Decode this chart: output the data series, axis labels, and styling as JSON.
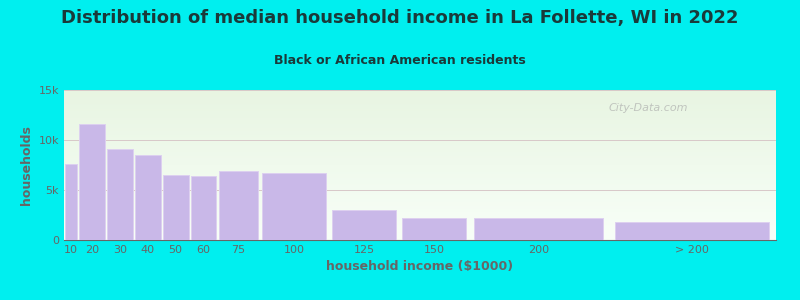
{
  "title": "Distribution of median household income in La Follette, WI in 2022",
  "subtitle": "Black or African American residents",
  "xlabel": "household income ($1000)",
  "ylabel": "households",
  "bar_labels": [
    "10",
    "20",
    "30",
    "40",
    "50",
    "60",
    "75",
    "100",
    "125",
    "150",
    "200",
    "> 200"
  ],
  "bar_left_edges": [
    5,
    10,
    20,
    30,
    40,
    50,
    60,
    75,
    100,
    125,
    150,
    200
  ],
  "bar_right_edges": [
    10,
    20,
    30,
    40,
    50,
    60,
    75,
    100,
    125,
    150,
    200,
    260
  ],
  "bar_values": [
    7600,
    11600,
    9100,
    8500,
    6500,
    6400,
    6900,
    6700,
    3000,
    2200,
    2200,
    1800
  ],
  "bar_color": "#c9b8e8",
  "bar_edgecolor": "#ddd0f0",
  "ylim": [
    0,
    15000
  ],
  "yticks": [
    0,
    5000,
    10000,
    15000
  ],
  "ytick_labels": [
    "0",
    "5k",
    "10k",
    "15k"
  ],
  "bg_color": "#00efef",
  "plot_bg_top": "#e8f5e2",
  "plot_bg_bottom": "#f8fff8",
  "title_color": "#1a3a3a",
  "subtitle_color": "#1a3a3a",
  "axis_color": "#666666",
  "grid_color": "#d8c8c8",
  "watermark_text": "City-Data.com",
  "title_fontsize": 13,
  "subtitle_fontsize": 9,
  "label_fontsize": 9,
  "tick_fontsize": 8
}
